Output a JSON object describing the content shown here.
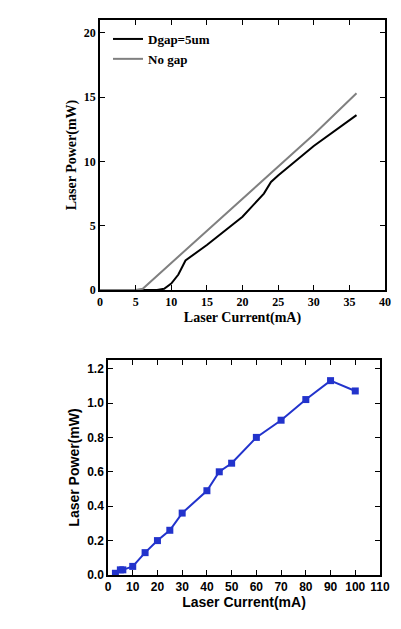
{
  "chart_data": [
    {
      "type": "line",
      "x_label": "Laser Current(mA)",
      "y_label": "Laser Power(mW)",
      "xlim": [
        0,
        40
      ],
      "xticks": [
        0,
        5,
        10,
        15,
        20,
        25,
        30,
        35,
        40
      ],
      "ylim": [
        0,
        21
      ],
      "yticks": [
        0,
        5,
        10,
        15,
        20
      ],
      "legend": "upper left",
      "series": [
        {
          "name": "Dgap=5um",
          "color": "#000000",
          "line_style": "solid",
          "x": [
            0,
            5,
            8,
            9,
            10,
            11,
            12,
            15,
            20,
            23,
            24,
            25,
            30,
            36
          ],
          "values": [
            0,
            0,
            0,
            0.1,
            0.5,
            1.2,
            2.3,
            3.5,
            5.7,
            7.5,
            8.4,
            8.9,
            11.2,
            13.6
          ]
        },
        {
          "name": "No gap",
          "color": "#808080",
          "line_style": "solid",
          "x": [
            0,
            5,
            6,
            7,
            10,
            15,
            20,
            25,
            30,
            36
          ],
          "values": [
            0,
            0,
            0.1,
            0.6,
            2.1,
            4.6,
            7.1,
            9.6,
            12.1,
            15.3
          ]
        }
      ]
    },
    {
      "type": "line",
      "x_label": "Laser Current(mA)",
      "y_label": "Laser Power(mW)",
      "xlim": [
        0,
        110
      ],
      "xticks": [
        0,
        10,
        20,
        30,
        40,
        50,
        60,
        70,
        80,
        90,
        100,
        110
      ],
      "ylim": [
        0,
        1.25
      ],
      "yticks": [
        {
          "value": 0,
          "label": "0.0"
        },
        0.2,
        0.4,
        0.6,
        0.8,
        {
          "value": 1,
          "label": "1.0"
        },
        1.2
      ],
      "series": [
        {
          "color": "#2233cc",
          "marker": "square",
          "line_style": "solid",
          "x": [
            3,
            5,
            6,
            10,
            15,
            20,
            25,
            30,
            40,
            45,
            50,
            60,
            70,
            80,
            90,
            100
          ],
          "values": [
            0.01,
            0.03,
            0.03,
            0.05,
            0.13,
            0.2,
            0.26,
            0.36,
            0.49,
            0.6,
            0.65,
            0.8,
            0.9,
            1.02,
            1.13,
            1.07
          ]
        }
      ]
    }
  ]
}
